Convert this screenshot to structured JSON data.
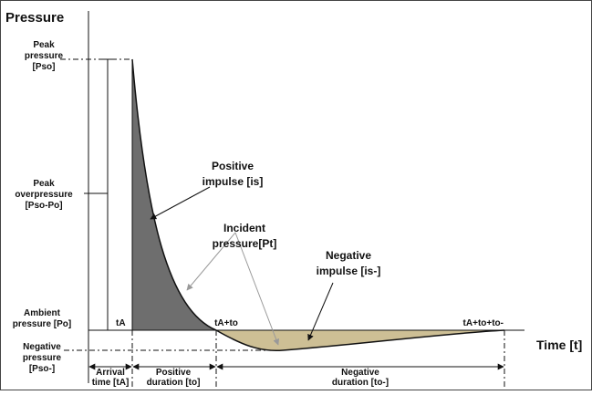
{
  "title": "Pressure",
  "time_axis_label": "Time [t]",
  "left_labels": [
    {
      "lines": [
        "Peak",
        "pressure",
        "[Pso]"
      ]
    },
    {
      "lines": [
        "Peak",
        "overpressure",
        "[Pso-Po]"
      ]
    },
    {
      "lines": [
        "Ambient",
        "pressure [Po]"
      ]
    },
    {
      "lines": [
        "Negative",
        "pressure",
        "[Pso-]"
      ]
    }
  ],
  "durations": [
    {
      "lines": [
        "Arrival",
        "time [tA]"
      ]
    },
    {
      "lines": [
        "Positive",
        "duration [to]"
      ]
    },
    {
      "lines": [
        "Negative",
        "duration [to-]"
      ]
    }
  ],
  "time_marks": [
    "tA",
    "tA+to",
    "tA+to+to-"
  ],
  "annotations": [
    {
      "lines": [
        "Positive",
        "impulse [is]"
      ]
    },
    {
      "lines": [
        "Incident",
        "pressure[Pt]"
      ]
    },
    {
      "lines": [
        "Negative",
        "impulse [is-]"
      ]
    }
  ]
}
